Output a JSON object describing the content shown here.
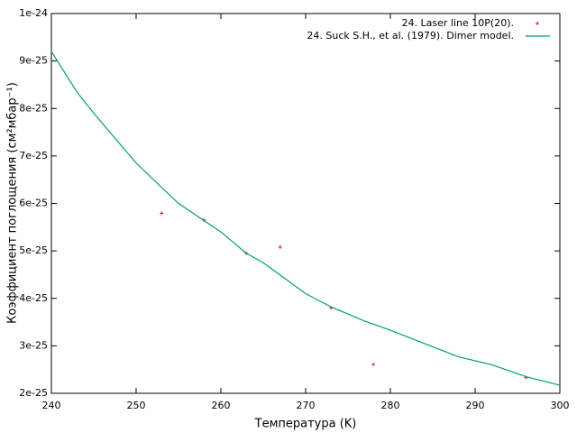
{
  "chart_data": {
    "type": "scatter",
    "xlabel": "Температура (K)",
    "ylabel": "Коэффициент поглощения (см²мбар⁻¹)",
    "xlim": [
      240,
      300
    ],
    "xticks": [
      240,
      250,
      260,
      270,
      280,
      290,
      300
    ],
    "ylim": [
      2e-25,
      1e-24
    ],
    "yticks": [
      2e-25,
      3e-25,
      4e-25,
      5e-25,
      6e-25,
      7e-25,
      8e-25,
      9e-25,
      1e-24
    ],
    "legend": "top-right",
    "series": [
      {
        "name": "24. Laser line 10P(20).",
        "type": "scatter",
        "color": "#d62020",
        "x": [
          253,
          258,
          263,
          267,
          273,
          278,
          296
        ],
        "values": [
          5.79e-25,
          5.65e-25,
          4.95e-25,
          5.08e-25,
          3.8e-25,
          2.61e-25,
          2.33e-25
        ]
      },
      {
        "name": "24. Suck S.H., et al. (1979). Dimer model.",
        "type": "line",
        "color": "#009e73",
        "x": [
          240,
          243,
          245,
          250,
          255,
          260,
          263,
          265,
          270,
          273,
          277,
          280,
          285,
          288,
          292,
          296,
          300
        ],
        "values": [
          9.2e-25,
          8.35e-25,
          7.9e-25,
          6.85e-25,
          6e-25,
          5.4e-25,
          4.95e-25,
          4.75e-25,
          4.1e-25,
          3.82e-25,
          3.52e-25,
          3.33e-25,
          2.98e-25,
          2.77e-25,
          2.6e-25,
          2.35e-25,
          2.17e-25
        ]
      }
    ]
  }
}
